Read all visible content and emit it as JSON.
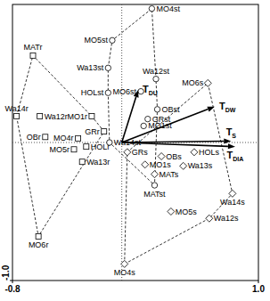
{
  "chart_data": {
    "type": "scatter",
    "xlim": [
      -0.8,
      1
    ],
    "ylim": [
      -1,
      1
    ],
    "xticks": [
      {
        "value": -0.8,
        "label": "-0.8"
      },
      {
        "value": 1,
        "label": "1.0"
      }
    ],
    "yticks": [
      {
        "value": -1,
        "label": "-1.0"
      }
    ],
    "series": [
      {
        "marker": "square",
        "line_style": "dashed",
        "labels": [
          "MATr",
          "Wa14r",
          "Wa12r",
          "MO1r",
          "GRr",
          "OBr",
          "MO4r",
          "MO5r",
          "HOLr",
          "Wa13r",
          "MO6r"
        ],
        "x": [
          -0.65,
          -0.77,
          -0.6,
          -0.22,
          -0.13,
          -0.56,
          -0.32,
          -0.35,
          -0.26,
          -0.29,
          -0.61
        ],
        "values": [
          0.63,
          0.19,
          0.19,
          0.19,
          0.08,
          0.04,
          0.03,
          -0.05,
          -0.03,
          -0.14,
          -0.68
        ]
      },
      {
        "marker": "circle",
        "line_style": "dashed",
        "labels": [
          "MO4st",
          "MO5st",
          "Wa13st",
          "Wa12st",
          "HOLst",
          "MO6st",
          "OBst",
          "GRst",
          "MO1st",
          "Wa14st",
          "MATst"
        ],
        "x": [
          0.22,
          -0.07,
          -0.1,
          0.25,
          -0.1,
          0.14,
          0.26,
          0.19,
          0.16,
          -0.09,
          0.24
        ],
        "values": [
          0.97,
          0.74,
          0.54,
          0.46,
          0.36,
          0.37,
          0.24,
          0.17,
          0.12,
          0,
          -0.31
        ]
      },
      {
        "marker": "diamond",
        "line_style": "dashed",
        "labels": [
          "MO6s",
          "GRs",
          "OBs",
          "HOLs",
          "MO1s",
          "Wa13s",
          "MATs",
          "Wa14s",
          "MO5s",
          "Wa12s",
          "MO4s"
        ],
        "x": [
          0.63,
          0.04,
          0.29,
          0.53,
          0.17,
          0.45,
          0.24,
          0.81,
          0.36,
          0.64,
          0.02
        ],
        "values": [
          0.43,
          -0.07,
          -0.1,
          -0.07,
          -0.16,
          -0.17,
          -0.23,
          -0.37,
          -0.5,
          -0.55,
          -0.88
        ]
      },
      {
        "type": "arrow",
        "labels": [
          "T",
          "T",
          "T",
          "T"
        ],
        "label_subscripts": [
          "DU",
          "DW",
          "S",
          "DIA"
        ],
        "x": [
          0.12,
          0.68,
          0.8,
          0.83
        ],
        "values": [
          0.38,
          0.26,
          0.01,
          -0.03
        ]
      }
    ]
  }
}
